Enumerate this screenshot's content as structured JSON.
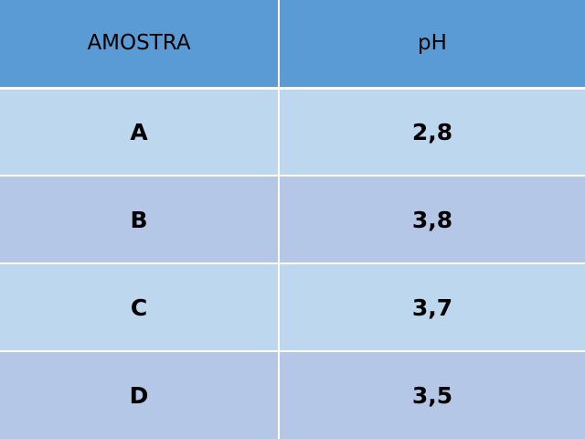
{
  "table": {
    "headers": [
      "AMOSTRA",
      "pH"
    ],
    "rows": [
      {
        "amostra": "A",
        "ph": "2,8"
      },
      {
        "amostra": "B",
        "ph": "3,8"
      },
      {
        "amostra": "C",
        "ph": "3,7"
      },
      {
        "amostra": "D",
        "ph": "3,5"
      }
    ]
  },
  "colors": {
    "header_bg": "#5b9bd5",
    "row_odd_bg": "#bdd7ee",
    "row_even_bg": "#b4c7e7",
    "divider": "#ffffff"
  }
}
